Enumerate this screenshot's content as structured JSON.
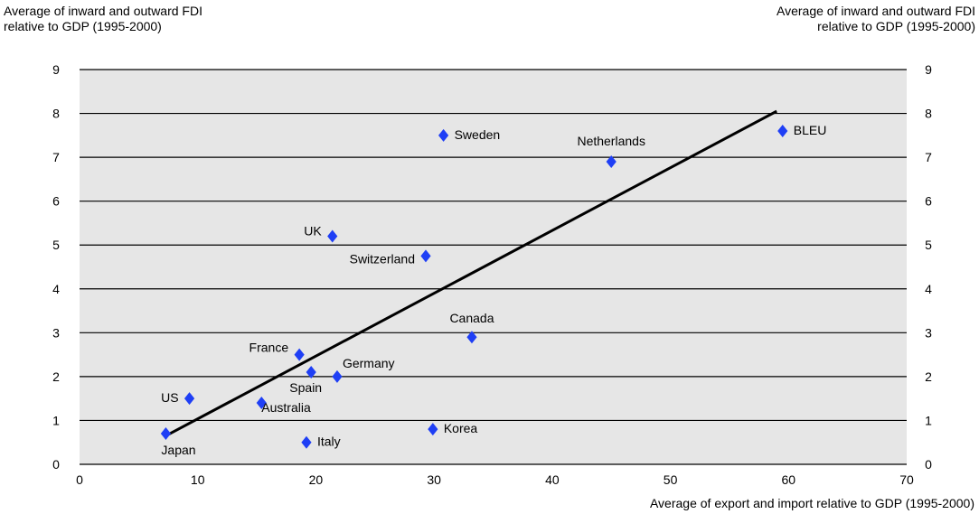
{
  "chart_data": {
    "type": "scatter",
    "ylabel_left": [
      "Average of inward and outward FDI",
      "relative to GDP (1995-2000)"
    ],
    "ylabel_right": [
      "Average of inward and outward FDI",
      "relative to GDP (1995-2000)"
    ],
    "xlabel": "Average of export and import relative to GDP (1995-2000)",
    "xlim": [
      0,
      70
    ],
    "ylim": [
      0,
      9
    ],
    "xticks": [
      "0",
      "10",
      "20",
      "30",
      "40",
      "50",
      "60",
      "70"
    ],
    "yticks": [
      "0",
      "1",
      "2",
      "3",
      "4",
      "5",
      "6",
      "7",
      "8",
      "9"
    ],
    "grid": "horizontal",
    "series_color": "#1f3ff5",
    "points": [
      {
        "label": "Japan",
        "x": 7.3,
        "y": 0.7
      },
      {
        "label": "US",
        "x": 9.3,
        "y": 1.5
      },
      {
        "label": "Australia",
        "x": 15.4,
        "y": 1.4
      },
      {
        "label": "France",
        "x": 18.6,
        "y": 2.5
      },
      {
        "label": "Spain",
        "x": 19.6,
        "y": 2.1
      },
      {
        "label": "Italy",
        "x": 19.2,
        "y": 0.5
      },
      {
        "label": "UK",
        "x": 21.4,
        "y": 5.2
      },
      {
        "label": "Germany",
        "x": 21.8,
        "y": 2.0
      },
      {
        "label": "Switzerland",
        "x": 29.3,
        "y": 4.75
      },
      {
        "label": "Korea",
        "x": 29.9,
        "y": 0.8
      },
      {
        "label": "Sweden",
        "x": 30.8,
        "y": 7.5
      },
      {
        "label": "Canada",
        "x": 33.2,
        "y": 2.9
      },
      {
        "label": "Netherlands",
        "x": 45.0,
        "y": 6.9
      },
      {
        "label": "BLEU",
        "x": 59.5,
        "y": 7.6
      }
    ],
    "trendline": {
      "x": [
        7.3,
        59.0
      ],
      "y": [
        0.65,
        8.05
      ]
    }
  }
}
